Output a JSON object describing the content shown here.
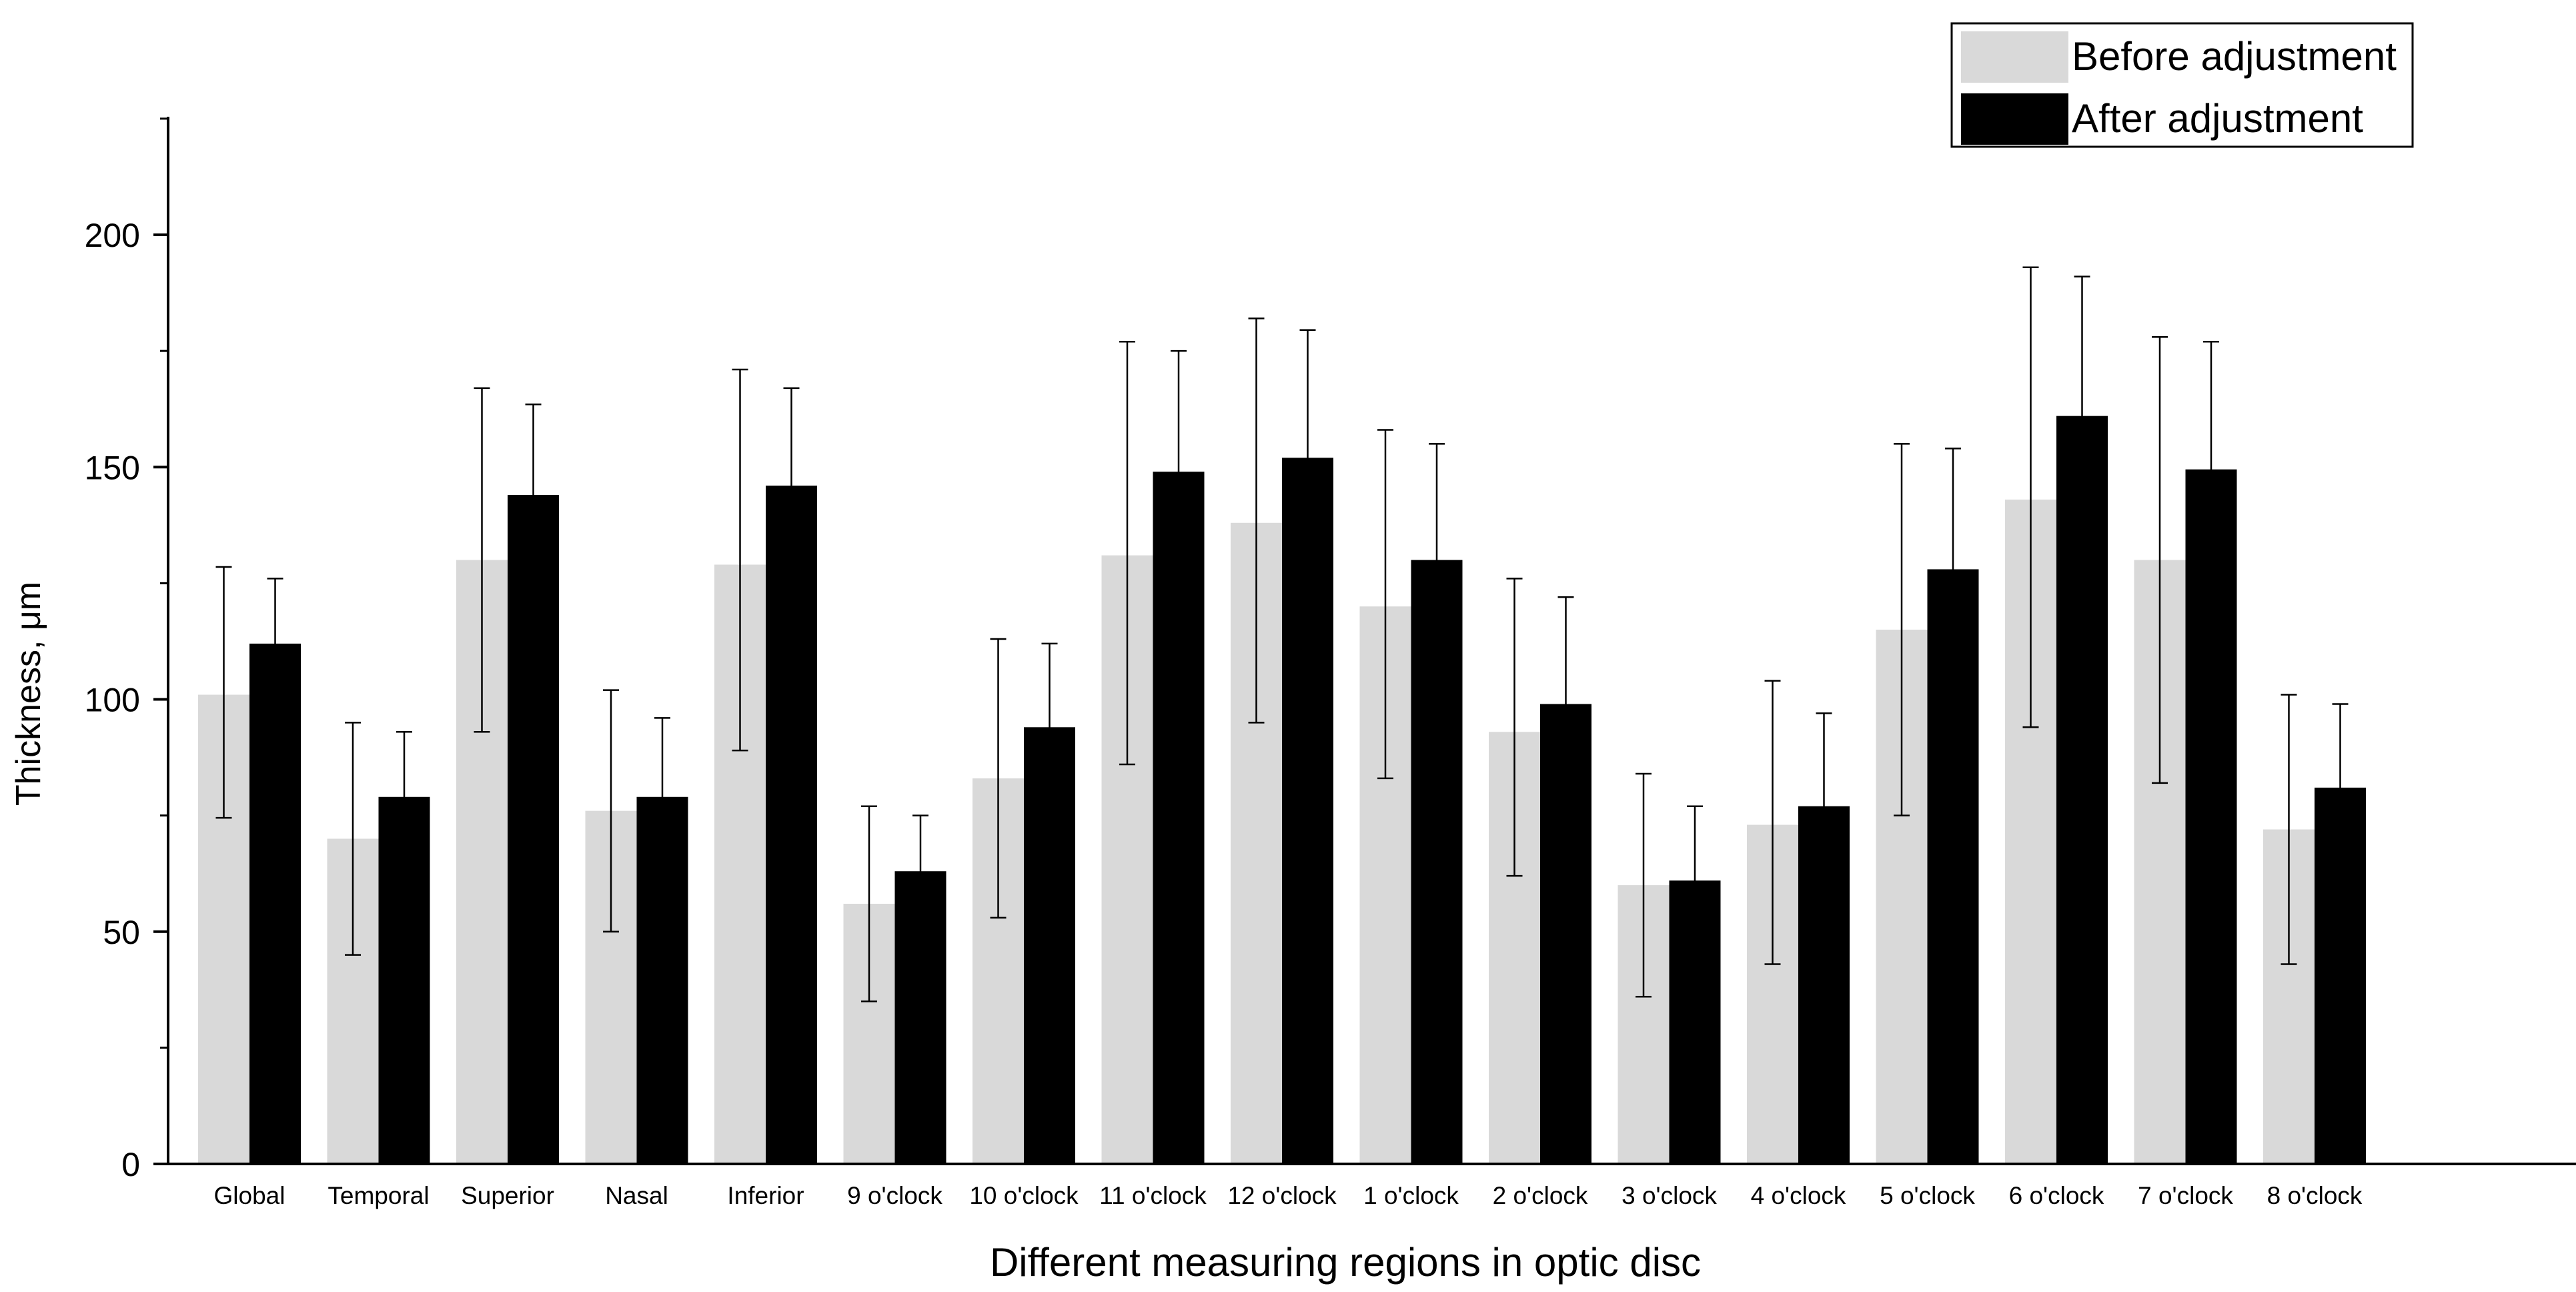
{
  "chart_data": {
    "type": "bar",
    "title": "",
    "xlabel": "Different measuring regions in optic disc",
    "ylabel": "Thickness, μm",
    "ylim": [
      0,
      225
    ],
    "yticks": [
      0,
      50,
      100,
      150,
      200
    ],
    "grid": false,
    "legend_position": "top-right",
    "categories": [
      "Global",
      "Temporal",
      "Superior",
      "Nasal",
      "Inferior",
      "9 o'clock",
      "10 o'clock",
      "11 o'clock",
      "12 o'clock",
      "1 o'clock",
      "2 o'clock",
      "3 o'clock",
      "4 o'clock",
      "5 o'clock",
      "6 o'clock",
      "7 o'clock",
      "8 o'clock"
    ],
    "series": [
      {
        "name": "Before adjustment",
        "color": "#d9d9d9",
        "values": [
          101,
          70,
          130,
          76,
          129,
          56,
          83,
          131,
          138,
          120,
          93,
          60,
          73,
          115,
          143,
          130,
          72
        ],
        "error_upper": [
          128.5,
          95,
          167,
          102,
          171,
          77,
          113,
          177,
          182,
          158,
          126,
          84,
          104,
          155,
          193,
          178,
          101
        ],
        "error_lower": [
          74.5,
          45,
          93,
          50,
          89,
          35,
          53,
          86,
          95,
          83,
          62,
          36,
          43,
          75,
          94,
          82,
          43
        ]
      },
      {
        "name": "After adjustment",
        "color": "#000000",
        "values": [
          112,
          79,
          144,
          79,
          146,
          63,
          94,
          149,
          152,
          130,
          99,
          61,
          77,
          128,
          161,
          149.5,
          81
        ],
        "error_upper": [
          126,
          93,
          163.5,
          96,
          167,
          75,
          112,
          175,
          179.5,
          155,
          122,
          77,
          97,
          154,
          191,
          177,
          99
        ],
        "error_lower": [
          98,
          65,
          124.5,
          62,
          125,
          51,
          76,
          123,
          124.5,
          105,
          76,
          45,
          57,
          102,
          131,
          122,
          63
        ]
      }
    ]
  }
}
